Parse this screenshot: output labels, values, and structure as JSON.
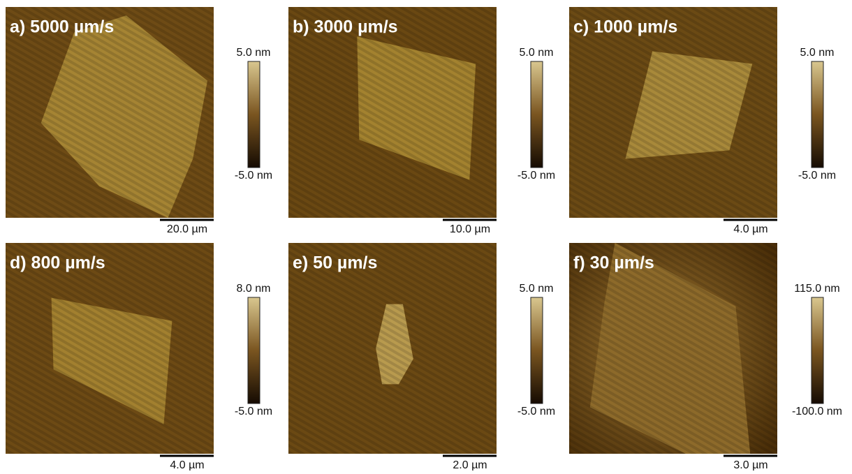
{
  "panels": [
    {
      "label": "a) 5000 µm/s",
      "colorbar_max": "5.0 nm",
      "colorbar_min": "-5.0 nm",
      "scale_bar": "20.0 µm"
    },
    {
      "label": "b) 3000 µm/s",
      "colorbar_max": "5.0 nm",
      "colorbar_min": "-5.0 nm",
      "scale_bar": "10.0 µm"
    },
    {
      "label": "c) 1000 µm/s",
      "colorbar_max": "5.0 nm",
      "colorbar_min": "-5.0 nm",
      "scale_bar": "4.0 µm"
    },
    {
      "label": "d) 800 µm/s",
      "colorbar_max": "8.0 nm",
      "colorbar_min": "-5.0 nm",
      "scale_bar": "4.0 µm"
    },
    {
      "label": "e) 50 µm/s",
      "colorbar_max": "5.0 nm",
      "colorbar_min": "-5.0 nm",
      "scale_bar": "2.0 µm"
    },
    {
      "label": "f) 30 µm/s",
      "colorbar_max": "115.0 nm",
      "colorbar_min": "-100.0 nm",
      "scale_bar": "3.0 µm"
    }
  ]
}
